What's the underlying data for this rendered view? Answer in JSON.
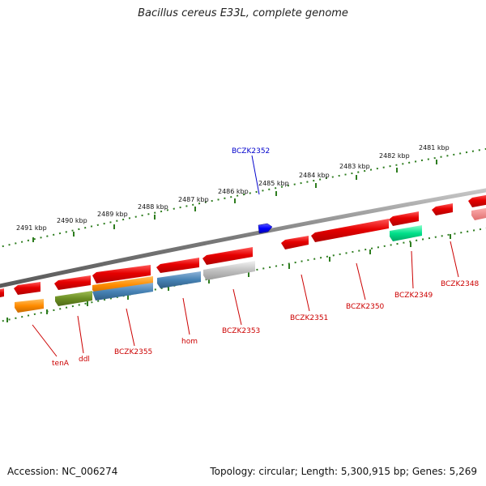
{
  "title": "Bacillus cereus E33L, complete genome",
  "accession_text": "Accession: NC_006274",
  "summary_text": "Topology: circular; Length: 5,300,915 bp; Genes: 5,269",
  "colors": {
    "backbone": "#8a8a8a",
    "tick": "#2e7d1f",
    "gene_red": "#e60000",
    "label_red": "#cc0000",
    "label_blue": "#0000cc"
  },
  "scale_labels": [
    "2491 kbp",
    "2490 kbp",
    "2489 kbp",
    "2488 kbp",
    "2487 kbp",
    "2486 kbp",
    "2485 kbp",
    "2484 kbp",
    "2483 kbp",
    "2482 kbp",
    "2481 kbp"
  ],
  "genes": [
    {
      "name": "BCZK2352",
      "color": "#0000ff",
      "strand": "forward"
    },
    {
      "name": "tenA",
      "color": "#ff8c00",
      "strand": "reverse"
    },
    {
      "name": "ddl",
      "color": "#6b8e23",
      "strand": "reverse"
    },
    {
      "name": "BCZK2355",
      "color": "#4682b4",
      "strand": "reverse"
    },
    {
      "name": "hom",
      "color": "#4682b4",
      "strand": "reverse"
    },
    {
      "name": "BCZK2353",
      "color": "#c0c0c0",
      "strand": "reverse"
    },
    {
      "name": "BCZK2351",
      "color": "#e60000",
      "strand": "reverse"
    },
    {
      "name": "BCZK2350",
      "color": "#e60000",
      "strand": "reverse"
    },
    {
      "name": "BCZK2349",
      "color": "#00e08a",
      "strand": "reverse"
    },
    {
      "name": "BCZK2348",
      "color": "#e60000",
      "strand": "reverse"
    }
  ]
}
